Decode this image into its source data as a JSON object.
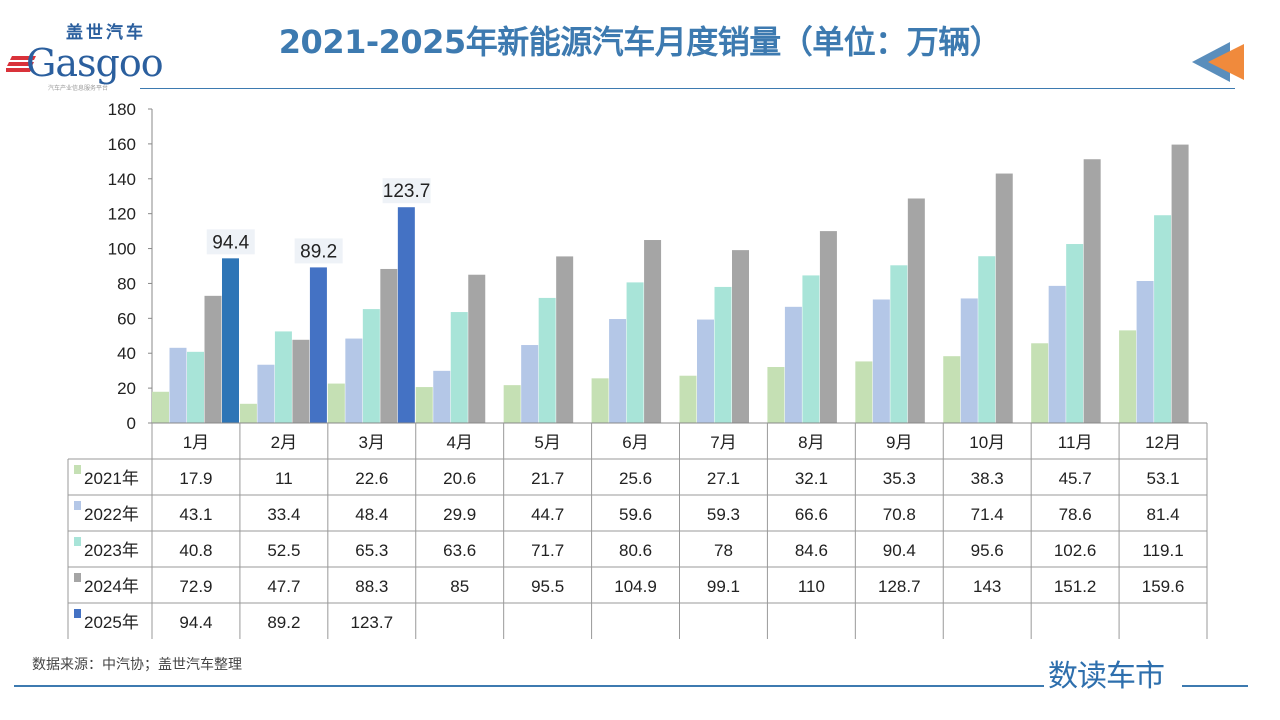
{
  "title": "2021-2025年新能源汽车月度销量（单位：万辆）",
  "logo": {
    "cn": "盖世汽车",
    "en": "Gasgoo",
    "sub": "汽车产业信息服务平台"
  },
  "source": "数据来源：中汽协；盖世汽车整理",
  "brand": "数读车市",
  "chart_data": {
    "type": "bar",
    "title": "2021-2025年新能源汽车月度销量（单位：万辆）",
    "xlabel": "",
    "ylabel": "万辆",
    "ylim": [
      0,
      180
    ],
    "yticks": [
      0,
      20,
      40,
      60,
      80,
      100,
      120,
      140,
      160,
      180
    ],
    "grid": false,
    "categories": [
      "1月",
      "2月",
      "3月",
      "4月",
      "5月",
      "6月",
      "7月",
      "8月",
      "9月",
      "10月",
      "11月",
      "12月"
    ],
    "series": [
      {
        "name": "2021年",
        "color": "#c5e0b4",
        "values": [
          17.9,
          11,
          22.6,
          20.6,
          21.7,
          25.6,
          27.1,
          32.1,
          35.3,
          38.3,
          45.7,
          53.1
        ]
      },
      {
        "name": "2022年",
        "color": "#b4c7e7",
        "values": [
          43.1,
          33.4,
          48.4,
          29.9,
          44.7,
          59.6,
          59.3,
          66.6,
          70.8,
          71.4,
          78.6,
          81.4
        ]
      },
      {
        "name": "2023年",
        "color": "#a8e4d8",
        "values": [
          40.8,
          52.5,
          65.3,
          63.6,
          71.7,
          80.6,
          78,
          84.6,
          90.4,
          95.6,
          102.6,
          119.1
        ]
      },
      {
        "name": "2024年",
        "color": "#a5a5a5",
        "values": [
          72.9,
          47.7,
          88.3,
          85,
          95.5,
          104.9,
          99.1,
          110,
          128.7,
          143,
          151.2,
          159.6
        ]
      },
      {
        "name": "2025年",
        "color": "#4472c4",
        "values": [
          94.4,
          89.2,
          123.7,
          null,
          null,
          null,
          null,
          null,
          null,
          null,
          null,
          null
        ],
        "data_labels": true
      }
    ],
    "legend": "data-table-left"
  }
}
